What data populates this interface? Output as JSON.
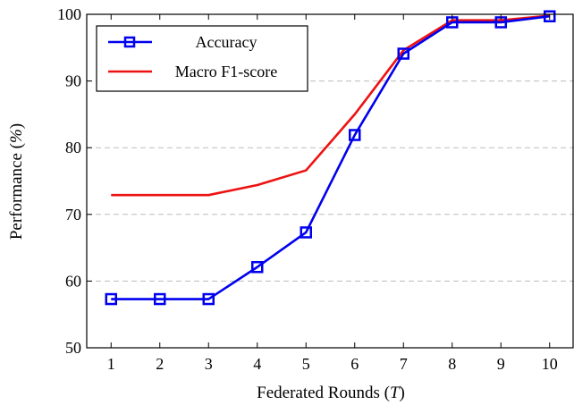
{
  "chart_data": {
    "type": "line",
    "xlabel": "Federated Rounds (T)",
    "ylabel": "Performance (%)",
    "xlim": [
      0.5,
      10.5
    ],
    "ylim": [
      50,
      100
    ],
    "x_ticks": [
      1,
      2,
      3,
      4,
      5,
      6,
      7,
      8,
      9,
      10
    ],
    "y_ticks": [
      50,
      60,
      70,
      80,
      90,
      100
    ],
    "grid": "horizontal-dashed",
    "legend_position": "top-left",
    "series": [
      {
        "name": "Accuracy",
        "color": "#0000ee",
        "marker": "square",
        "x": [
          1,
          2,
          3,
          4,
          5,
          6,
          7,
          8,
          9,
          10
        ],
        "values": [
          57.3,
          57.3,
          57.3,
          62.1,
          67.3,
          81.9,
          94.1,
          98.8,
          98.8,
          99.7
        ]
      },
      {
        "name": "Macro F1-score",
        "color": "#ee1111",
        "marker": "none",
        "x": [
          1,
          2,
          3,
          4,
          5,
          6,
          7,
          8,
          9,
          10
        ],
        "values": [
          72.9,
          72.9,
          72.9,
          74.4,
          76.6,
          85.0,
          94.6,
          99.1,
          99.1,
          99.8
        ]
      }
    ]
  }
}
